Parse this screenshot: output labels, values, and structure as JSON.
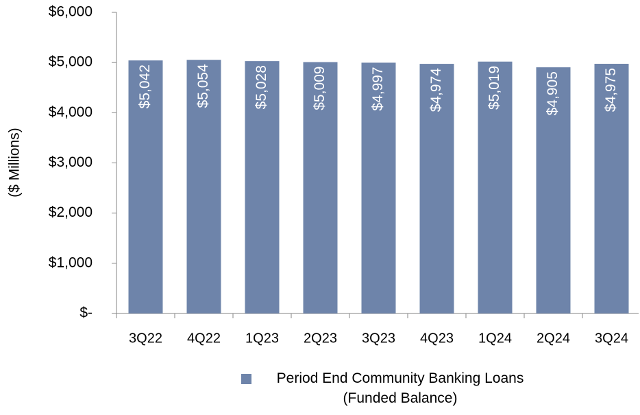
{
  "chart_data": {
    "type": "bar",
    "y_label": "($ Millions)",
    "categories": [
      "3Q22",
      "4Q22",
      "1Q23",
      "2Q23",
      "3Q23",
      "4Q23",
      "1Q24",
      "2Q24",
      "3Q24"
    ],
    "series": [
      {
        "name": "Period End Community Banking Loans (Funded Balance)",
        "color": "#6e84aa",
        "values": [
          5042,
          5054,
          5028,
          5009,
          4997,
          4974,
          5019,
          4905,
          4975
        ],
        "value_labels": [
          "$5,042",
          "$5,054",
          "$5,028",
          "$5,009",
          "$4,997",
          "$4,974",
          "$5,019",
          "$4,905",
          "$4,975"
        ]
      }
    ],
    "ylim": [
      0,
      6000
    ],
    "yticks": [
      {
        "value": 0,
        "label": "$-"
      },
      {
        "value": 1000,
        "label": "$1,000"
      },
      {
        "value": 2000,
        "label": "$2,000"
      },
      {
        "value": 3000,
        "label": "$3,000"
      },
      {
        "value": 4000,
        "label": "$4,000"
      },
      {
        "value": 5000,
        "label": "$5,000"
      },
      {
        "value": 6000,
        "label": "$6,000"
      }
    ],
    "grid": false
  }
}
